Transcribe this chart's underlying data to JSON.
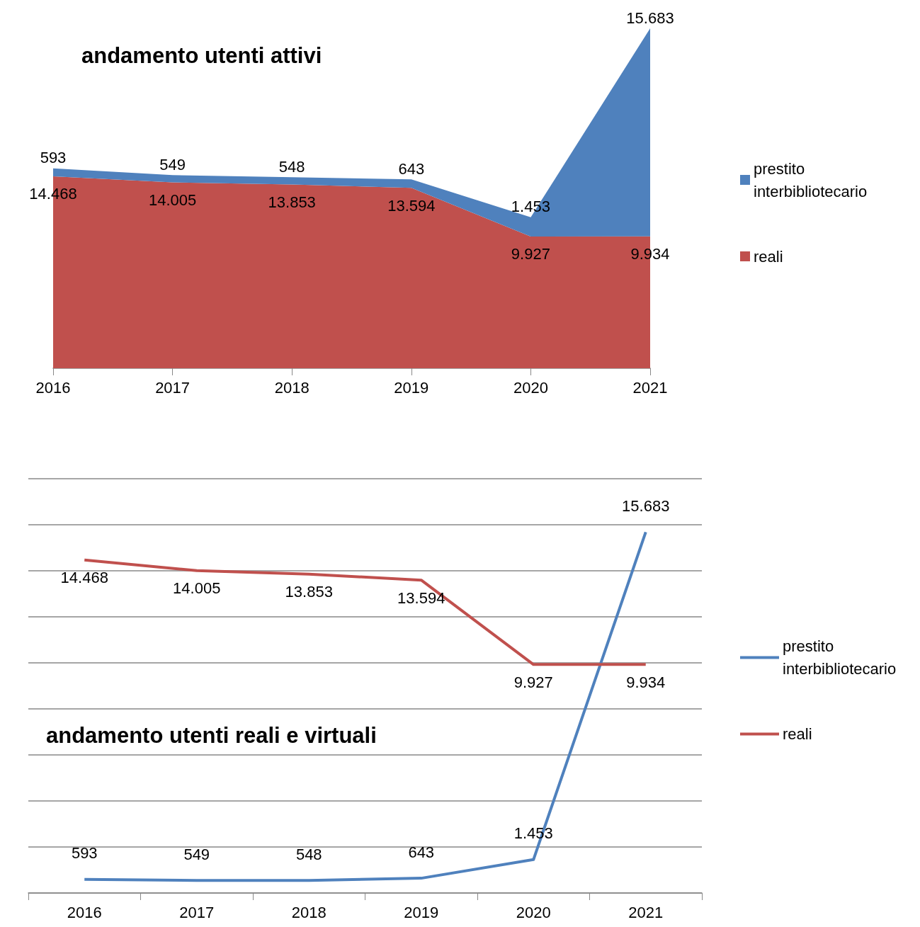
{
  "chart_data": [
    {
      "type": "area",
      "title": "andamento utenti attivi",
      "categories": [
        "2016",
        "2017",
        "2018",
        "2019",
        "2020",
        "2021"
      ],
      "stacked": true,
      "legend": "right",
      "tick_labels": "x",
      "marker": "none",
      "grid": false,
      "series": [
        {
          "name": "reali",
          "color": "#c0504d",
          "values": [
            14468,
            14005,
            13853,
            13594,
            9927,
            9934
          ],
          "value_labels": [
            "14.468",
            "14.005",
            "13.853",
            "13.594",
            "9.927",
            "9.934"
          ]
        },
        {
          "name": "prestito interbibliotecario",
          "color": "#4f81bd",
          "values": [
            593,
            549,
            548,
            643,
            1453,
            15683
          ],
          "value_labels": [
            "593",
            "549",
            "548",
            "643",
            "1.453",
            "15.683"
          ]
        }
      ]
    },
    {
      "type": "line",
      "title": "andamento utenti reali e virtuali",
      "categories": [
        "2016",
        "2017",
        "2018",
        "2019",
        "2020",
        "2021"
      ],
      "legend": "right",
      "tick_labels": "x",
      "marker": "none",
      "grid": "y",
      "ylim": [
        0,
        18000
      ],
      "yticks": [
        {
          "value": 0,
          "label": null
        },
        {
          "value": 2000,
          "label": null
        },
        {
          "value": 4000,
          "label": null
        },
        {
          "value": 6000,
          "label": null
        },
        {
          "value": 8000,
          "label": null
        },
        {
          "value": 10000,
          "label": null
        },
        {
          "value": 12000,
          "label": null
        },
        {
          "value": 14000,
          "label": null
        },
        {
          "value": 16000,
          "label": null
        },
        {
          "value": 18000,
          "label": null
        }
      ],
      "series": [
        {
          "name": "prestito interbibliotecario",
          "color": "#4f81bd",
          "values": [
            593,
            549,
            548,
            643,
            1453,
            15683
          ],
          "value_labels": [
            "593",
            "549",
            "548",
            "643",
            "1.453",
            "15.683"
          ]
        },
        {
          "name": "reali",
          "color": "#c0504d",
          "values": [
            14468,
            14005,
            13853,
            13594,
            9927,
            9934
          ],
          "value_labels": [
            "14.468",
            "14.005",
            "13.853",
            "13.594",
            "9.927",
            "9.934"
          ]
        }
      ]
    }
  ]
}
